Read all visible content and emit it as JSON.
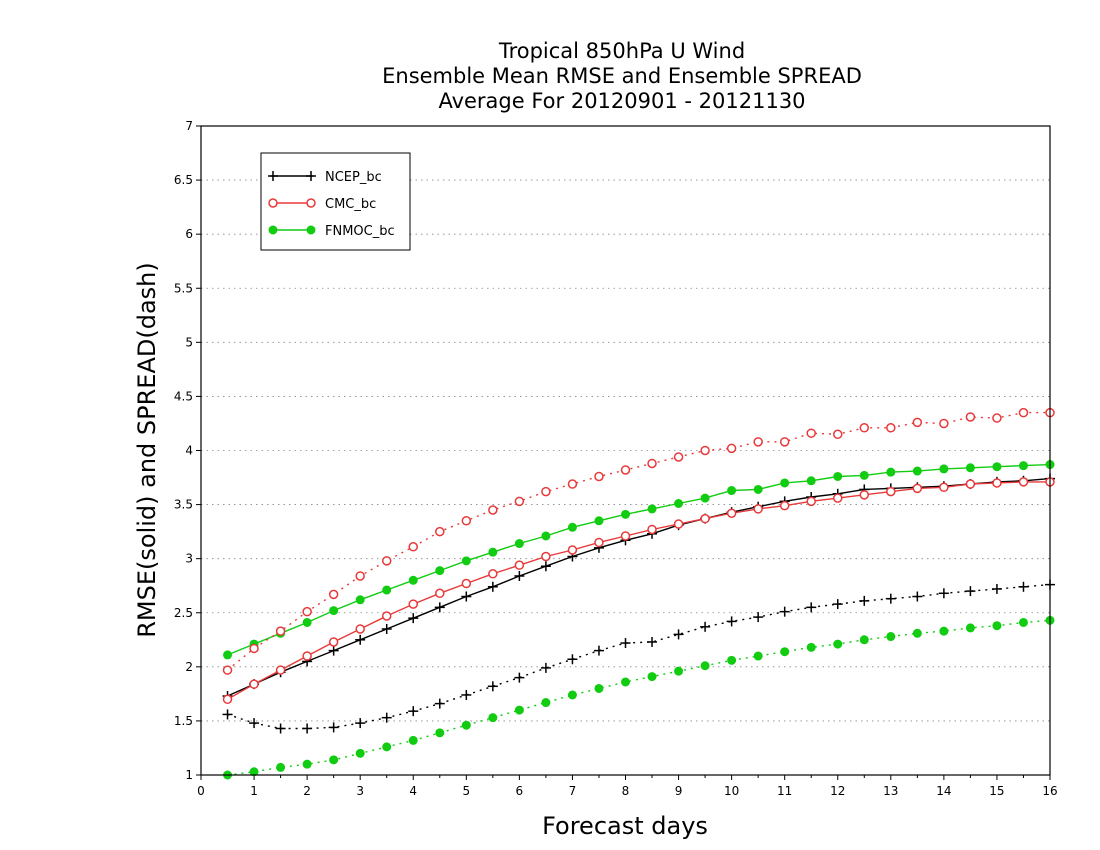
{
  "chart_data": {
    "type": "line",
    "title": [
      "Tropical 850hPa U Wind",
      "Ensemble Mean RMSE and Ensemble SPREAD",
      "Average For 20120901 - 20121130"
    ],
    "xlabel": "Forecast days",
    "ylabel": "RMSE(solid) and SPREAD(dash)",
    "xlim": [
      0,
      16
    ],
    "ylim": [
      1,
      7
    ],
    "xticks": [
      "0",
      "1",
      "2",
      "3",
      "4",
      "5",
      "6",
      "7",
      "8",
      "9",
      "10",
      "11",
      "12",
      "13",
      "14",
      "15",
      "16"
    ],
    "yticks": [
      "1",
      "1.5",
      "2",
      "2.5",
      "3",
      "3.5",
      "4",
      "4.5",
      "5",
      "5.5",
      "6",
      "6.5",
      "7"
    ],
    "grid": "horizontal dotted",
    "legend_position": "top-left",
    "x": [
      0.5,
      1,
      1.5,
      2,
      2.5,
      3,
      3.5,
      4,
      4.5,
      5,
      5.5,
      6,
      6.5,
      7,
      7.5,
      8,
      8.5,
      9,
      9.5,
      10,
      10.5,
      11,
      11.5,
      12,
      12.5,
      13,
      13.5,
      14,
      14.5,
      15,
      15.5,
      16
    ],
    "series": [
      {
        "name": "NCEP_bc",
        "metric": "RMSE",
        "style": "solid",
        "marker": "plus",
        "color": "#000000",
        "values": [
          1.73,
          1.84,
          1.95,
          2.05,
          2.15,
          2.25,
          2.35,
          2.45,
          2.55,
          2.65,
          2.74,
          2.84,
          2.93,
          3.02,
          3.1,
          3.17,
          3.23,
          3.31,
          3.37,
          3.43,
          3.48,
          3.53,
          3.57,
          3.6,
          3.64,
          3.65,
          3.66,
          3.67,
          3.69,
          3.71,
          3.72,
          3.74
        ]
      },
      {
        "name": "CMC_bc",
        "metric": "RMSE",
        "style": "solid",
        "marker": "open-circle",
        "color": "#e8393a",
        "values": [
          1.7,
          1.84,
          1.97,
          2.1,
          2.23,
          2.35,
          2.47,
          2.58,
          2.68,
          2.77,
          2.86,
          2.94,
          3.02,
          3.08,
          3.15,
          3.21,
          3.27,
          3.32,
          3.37,
          3.42,
          3.46,
          3.49,
          3.53,
          3.56,
          3.59,
          3.62,
          3.65,
          3.66,
          3.69,
          3.7,
          3.71,
          3.71
        ]
      },
      {
        "name": "FNMOC_bc",
        "metric": "RMSE",
        "style": "solid",
        "marker": "filled-circle",
        "color": "#11cc11",
        "values": [
          2.11,
          2.21,
          2.31,
          2.41,
          2.52,
          2.62,
          2.71,
          2.8,
          2.89,
          2.98,
          3.06,
          3.14,
          3.21,
          3.29,
          3.35,
          3.41,
          3.46,
          3.51,
          3.56,
          3.63,
          3.64,
          3.7,
          3.72,
          3.76,
          3.77,
          3.8,
          3.81,
          3.83,
          3.84,
          3.85,
          3.86,
          3.87
        ]
      },
      {
        "name": "NCEP_bc",
        "metric": "SPREAD",
        "style": "dash",
        "marker": "plus",
        "color": "#000000",
        "values": [
          1.56,
          1.48,
          1.43,
          1.43,
          1.44,
          1.48,
          1.53,
          1.59,
          1.66,
          1.74,
          1.82,
          1.9,
          1.99,
          2.07,
          2.15,
          2.22,
          2.23,
          2.3,
          2.37,
          2.42,
          2.46,
          2.51,
          2.55,
          2.58,
          2.61,
          2.63,
          2.65,
          2.68,
          2.7,
          2.72,
          2.74,
          2.76
        ]
      },
      {
        "name": "CMC_bc",
        "metric": "SPREAD",
        "style": "dash",
        "marker": "open-circle",
        "color": "#e8393a",
        "values": [
          1.97,
          2.17,
          2.33,
          2.51,
          2.67,
          2.84,
          2.98,
          3.11,
          3.25,
          3.35,
          3.45,
          3.53,
          3.62,
          3.69,
          3.76,
          3.82,
          3.88,
          3.94,
          4.0,
          4.02,
          4.08,
          4.08,
          4.16,
          4.15,
          4.21,
          4.21,
          4.26,
          4.25,
          4.31,
          4.3,
          4.35,
          4.35
        ]
      },
      {
        "name": "FNMOC_bc",
        "metric": "SPREAD",
        "style": "dash",
        "marker": "filled-circle",
        "color": "#11cc11",
        "values": [
          1.0,
          1.03,
          1.07,
          1.1,
          1.14,
          1.2,
          1.26,
          1.32,
          1.39,
          1.46,
          1.53,
          1.6,
          1.67,
          1.74,
          1.8,
          1.86,
          1.91,
          1.96,
          2.01,
          2.06,
          2.1,
          2.14,
          2.18,
          2.21,
          2.25,
          2.28,
          2.31,
          2.33,
          2.36,
          2.38,
          2.41,
          2.43
        ]
      }
    ]
  }
}
